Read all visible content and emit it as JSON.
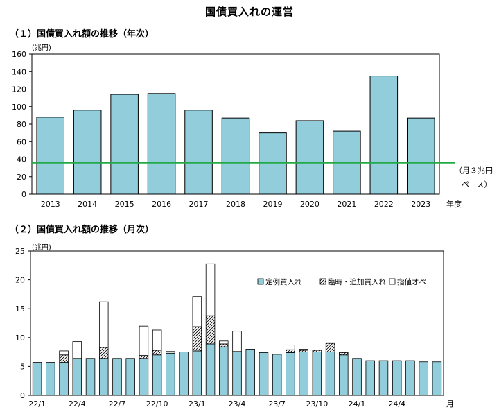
{
  "page": {
    "title": "国債買入れの運営",
    "section1_heading": "（１）国債買入れ額の推移（年次）",
    "section2_heading": "（２）国債買入れ額の推移（月次）"
  },
  "chart_data": [
    {
      "type": "bar",
      "unit_label": "(兆円)",
      "x_unit_label": "年度",
      "categories": [
        "2013",
        "2014",
        "2015",
        "2016",
        "2017",
        "2018",
        "2019",
        "2020",
        "2021",
        "2022",
        "2023"
      ],
      "values": [
        88,
        96,
        114,
        115,
        96,
        87,
        70,
        84,
        72,
        135,
        87
      ],
      "ylim": [
        0,
        160
      ],
      "yticks": [
        0,
        20,
        40,
        60,
        80,
        100,
        120,
        140,
        160
      ],
      "bar_color": "#92cddc",
      "reference_line": {
        "value": 36,
        "color": "#22aa44",
        "label_line1": "（月３兆円",
        "label_line2": "ペース）"
      }
    },
    {
      "type": "bar",
      "stacked": true,
      "unit_label": "(兆円)",
      "x_unit_label": "月",
      "x_tick_labels": [
        "22/1",
        "22/4",
        "22/7",
        "22/10",
        "23/1",
        "23/4",
        "23/7",
        "23/10",
        "24/1",
        "24/4"
      ],
      "ylim": [
        0,
        25
      ],
      "yticks": [
        0,
        5,
        10,
        15,
        20,
        25
      ],
      "series": [
        {
          "name": "定例買入れ",
          "color": "#92cddc",
          "values": [
            5.7,
            5.7,
            5.7,
            6.4,
            6.4,
            6.4,
            6.4,
            6.4,
            6.4,
            7.0,
            7.3,
            7.5,
            7.7,
            8.9,
            8.4,
            7.6,
            8.0,
            7.4,
            7.1,
            7.4,
            7.5,
            7.5,
            7.5,
            7.0,
            6.4,
            6.0,
            6.0,
            6.0,
            6.0,
            5.8,
            5.8
          ]
        },
        {
          "name": "臨時・追加買入れ",
          "color": "#ffffff",
          "values": [
            0,
            0,
            1.3,
            0,
            0,
            1.9,
            0,
            0,
            0.5,
            0.8,
            0,
            0,
            4.2,
            4.9,
            0.5,
            0,
            0,
            0,
            0,
            0.5,
            0.3,
            0.3,
            1.5,
            0.4,
            0,
            0,
            0,
            0,
            0,
            0,
            0
          ]
        },
        {
          "name": "指値オペ",
          "color": "#ffffff",
          "values": [
            0,
            0,
            0.7,
            2.9,
            0,
            7.9,
            0,
            0,
            5.1,
            3.5,
            0.3,
            0,
            5.2,
            9.0,
            0.5,
            3.5,
            0,
            0,
            0,
            0.8,
            0.2,
            0,
            0.1,
            0,
            0,
            0,
            0,
            0,
            0,
            0,
            0
          ]
        }
      ]
    }
  ]
}
